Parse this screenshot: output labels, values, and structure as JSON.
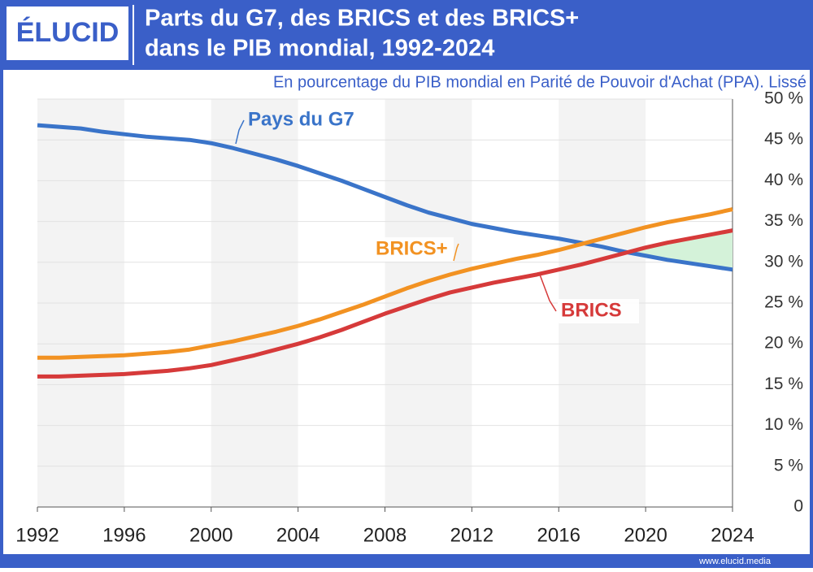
{
  "logo": "ÉLUCID",
  "footer": "www.elucid.media",
  "chart_data": {
    "type": "line",
    "title_lines": [
      "Parts du G7, des BRICS et des BRICS+",
      "dans le PIB mondial, 1992-2024"
    ],
    "subtitle": "En pourcentage du PIB mondial en Parité de Pouvoir d'Achat (PPA). Lissé",
    "x": [
      1992,
      1993,
      1994,
      1995,
      1996,
      1997,
      1998,
      1999,
      2000,
      2001,
      2002,
      2003,
      2004,
      2005,
      2006,
      2007,
      2008,
      2009,
      2010,
      2011,
      2012,
      2013,
      2014,
      2015,
      2016,
      2017,
      2018,
      2019,
      2020,
      2021,
      2022,
      2023,
      2024
    ],
    "series": [
      {
        "name": "Pays du G7",
        "color": "#3a74c9",
        "values": [
          46.8,
          46.6,
          46.4,
          46.0,
          45.7,
          45.4,
          45.2,
          45.0,
          44.6,
          44.0,
          43.3,
          42.6,
          41.8,
          40.9,
          40.0,
          39.0,
          38.0,
          37.0,
          36.1,
          35.4,
          34.7,
          34.2,
          33.7,
          33.3,
          32.9,
          32.4,
          31.9,
          31.3,
          30.8,
          30.3,
          29.9,
          29.5,
          29.1
        ]
      },
      {
        "name": "BRICS+",
        "color": "#f29222",
        "values": [
          18.3,
          18.3,
          18.4,
          18.5,
          18.6,
          18.8,
          19.0,
          19.3,
          19.8,
          20.3,
          20.9,
          21.5,
          22.2,
          23.0,
          23.9,
          24.8,
          25.8,
          26.8,
          27.7,
          28.5,
          29.2,
          29.8,
          30.4,
          30.9,
          31.5,
          32.2,
          32.9,
          33.6,
          34.3,
          34.9,
          35.4,
          35.9,
          36.5
        ]
      },
      {
        "name": "BRICS",
        "color": "#d63a3a",
        "values": [
          16.0,
          16.0,
          16.1,
          16.2,
          16.3,
          16.5,
          16.7,
          17.0,
          17.4,
          18.0,
          18.6,
          19.3,
          20.0,
          20.8,
          21.7,
          22.7,
          23.7,
          24.6,
          25.5,
          26.3,
          26.9,
          27.5,
          28.0,
          28.5,
          29.1,
          29.7,
          30.4,
          31.1,
          31.8,
          32.4,
          32.9,
          33.4,
          33.9
        ]
      }
    ],
    "xlim": [
      1992,
      2024
    ],
    "xticks": [
      1992,
      1996,
      2000,
      2004,
      2008,
      2012,
      2016,
      2020,
      2024
    ],
    "ylim": [
      0,
      50
    ],
    "yticks": [
      0,
      {
        "value": 5,
        "label": "5 %"
      },
      {
        "value": 10,
        "label": "10 %"
      },
      {
        "value": 15,
        "label": "15 %"
      },
      {
        "value": 20,
        "label": "20 %"
      },
      {
        "value": 25,
        "label": "25 %"
      },
      {
        "value": 30,
        "label": "30 %"
      },
      {
        "value": 35,
        "label": "35 %"
      },
      {
        "value": 40,
        "label": "40 %"
      },
      {
        "value": 45,
        "label": "45 %"
      },
      {
        "value": 50,
        "label": "50 %"
      }
    ],
    "grid": true,
    "gap_fill_color": "#d4f2d9"
  }
}
